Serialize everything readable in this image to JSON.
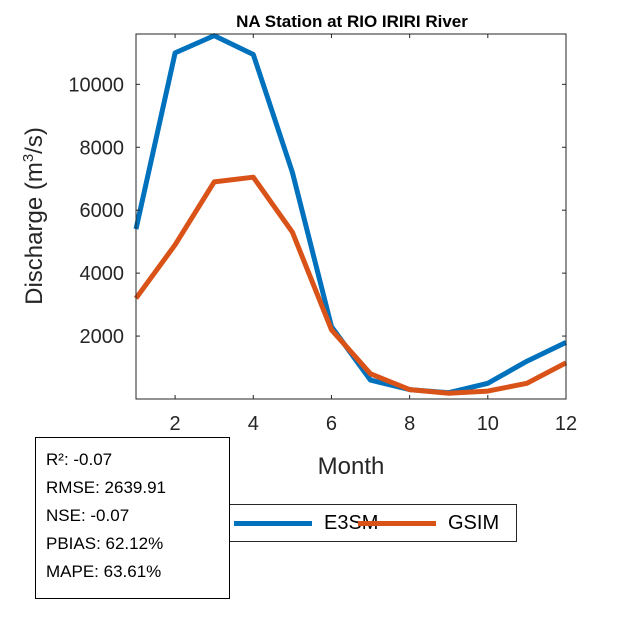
{
  "chart_data": {
    "type": "line",
    "title": "NA  Station at  RIO IRIRI  River",
    "xlabel": "Month",
    "ylabel": "Discharge (m",
    "ylabel_superscript": "3",
    "ylabel_suffix": "/s)",
    "xlim": [
      1,
      12
    ],
    "ylim": [
      0,
      11600
    ],
    "xticks": [
      2,
      4,
      6,
      8,
      10,
      12
    ],
    "yticks": [
      2000,
      4000,
      6000,
      8000,
      10000
    ],
    "x": [
      1,
      2,
      3,
      4,
      5,
      6,
      7,
      8,
      9,
      10,
      11,
      12
    ],
    "series": [
      {
        "name": "E3SM",
        "color": "#0072BD",
        "values": [
          5400,
          11000,
          11550,
          10950,
          7200,
          2300,
          600,
          300,
          200,
          500,
          1200,
          1800
        ]
      },
      {
        "name": "GSIM",
        "color": "#D95319",
        "values": [
          3200,
          4900,
          6900,
          7050,
          5300,
          2200,
          800,
          300,
          180,
          250,
          500,
          1150
        ]
      }
    ],
    "legend_position": "bottom"
  },
  "stats": {
    "r2": "R²: -0.07",
    "rmse": "RMSE: 2639.91",
    "nse": "NSE: -0.07",
    "pbias": "PBIAS: 62.12%",
    "mape": "MAPE: 63.61%"
  }
}
